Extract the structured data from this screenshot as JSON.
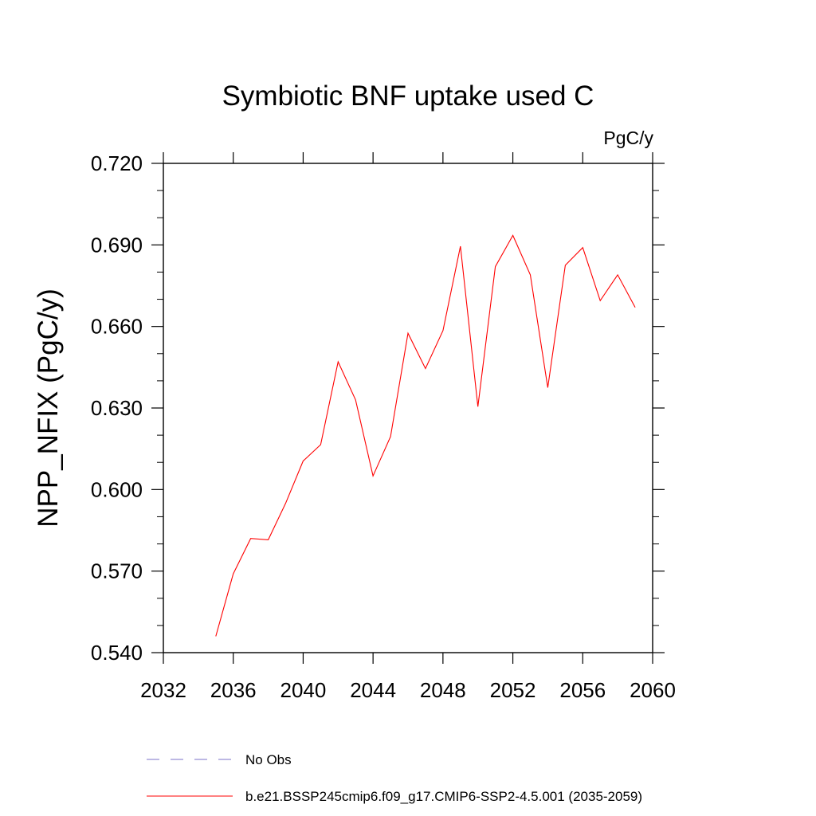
{
  "chart_data": {
    "type": "line",
    "title": "Symbiotic BNF uptake used C",
    "units": "PgC/y",
    "ylabel": "NPP_NFIX  (PgC/y)",
    "xlabel": "",
    "xlim": [
      2032,
      2060
    ],
    "ylim": [
      0.54,
      0.72
    ],
    "xticks": [
      "2032",
      "2036",
      "2040",
      "2044",
      "2048",
      "2052",
      "2056",
      "2060"
    ],
    "yticks": [
      "0.540",
      "0.570",
      "0.600",
      "0.630",
      "0.660",
      "0.690",
      "0.720"
    ],
    "grid": false,
    "legend_position": "bottom",
    "series": [
      {
        "name": "No Obs",
        "color": "#7b72c9",
        "dash": "dashed",
        "x": [],
        "y": []
      },
      {
        "name": "b.e21.BSSP245cmip6.f09_g17.CMIP6-SSP2-4.5.001 (2035-2059)",
        "color": "#ff0000",
        "dash": "solid",
        "x": [
          2035,
          2036,
          2037,
          2038,
          2039,
          2040,
          2041,
          2042,
          2043,
          2044,
          2045,
          2046,
          2047,
          2048,
          2049,
          2050,
          2051,
          2052,
          2053,
          2054,
          2055,
          2056,
          2057,
          2058,
          2059
        ],
        "y": [
          0.546,
          0.569,
          0.582,
          0.5815,
          0.595,
          0.6105,
          0.6165,
          0.647,
          0.633,
          0.605,
          0.6195,
          0.6575,
          0.6445,
          0.6585,
          0.6895,
          0.6305,
          0.682,
          0.6935,
          0.679,
          0.6375,
          0.6825,
          0.689,
          0.6695,
          0.679,
          0.667
        ]
      }
    ]
  }
}
